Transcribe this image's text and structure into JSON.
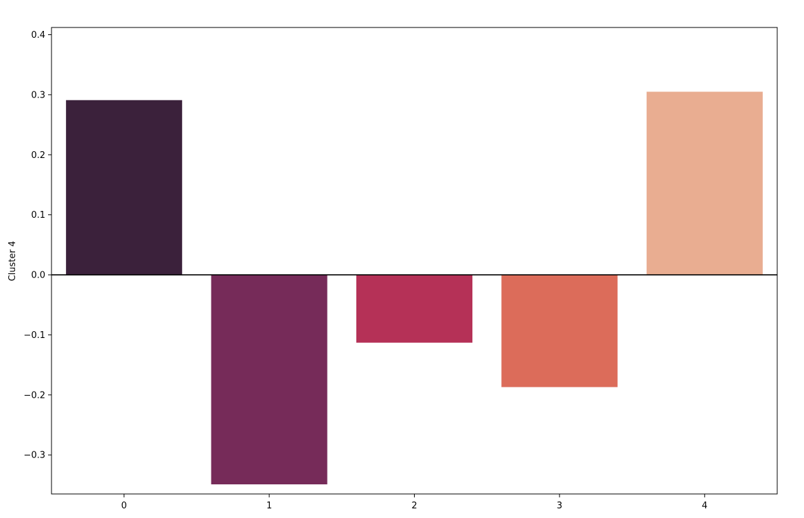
{
  "chart_data": {
    "type": "bar",
    "categories": [
      "0",
      "1",
      "2",
      "3",
      "4"
    ],
    "values": [
      0.291,
      -0.349,
      -0.113,
      -0.187,
      0.305
    ],
    "colors": [
      "#3b213b",
      "#762b59",
      "#b53157",
      "#dc6c5a",
      "#e9ad91"
    ],
    "title": "",
    "xlabel": "",
    "ylabel": "Cluster 4",
    "ylim": [
      -0.365,
      0.412
    ],
    "yticks": [
      -0.3,
      -0.2,
      -0.1,
      0.0,
      0.1,
      0.2,
      0.3,
      0.4
    ],
    "ytick_labels": [
      "−0.3",
      "−0.2",
      "−0.1",
      "0.0",
      "0.1",
      "0.2",
      "0.3",
      "0.4"
    ],
    "zero_line": true,
    "grid": false,
    "legend": "none"
  }
}
